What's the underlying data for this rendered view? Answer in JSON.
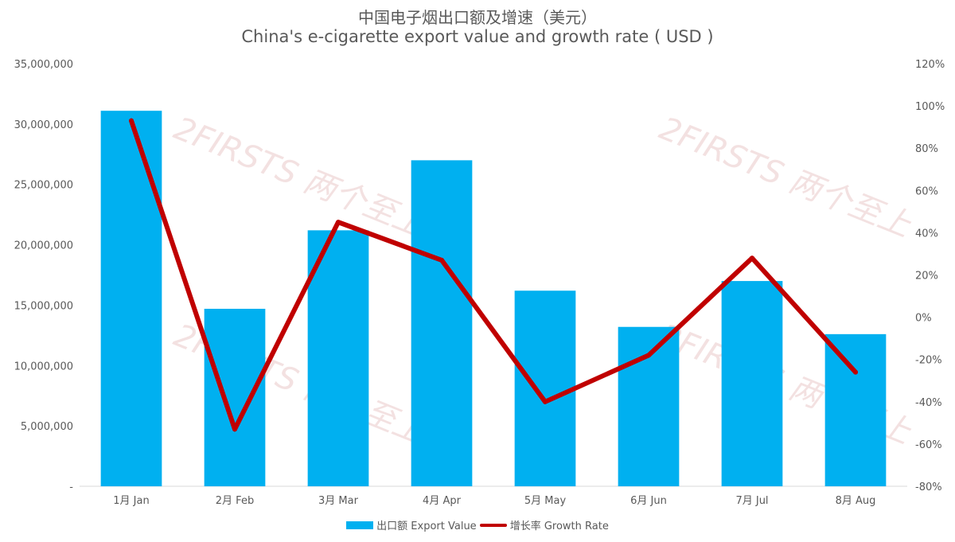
{
  "chart_data": {
    "type": "bar",
    "title": "中国电子烟出口额及增速（美元）",
    "subtitle": "China's e-cigarette export value and growth rate ( USD )",
    "categories": [
      "1月 Jan",
      "2月 Feb",
      "3月 Mar",
      "4月 Apr",
      "5月 May",
      "6月 Jun",
      "7月 Jul",
      "8月 Aug"
    ],
    "series": [
      {
        "name": "出口额 Export Value",
        "type": "bar",
        "axis": "left",
        "color": "#00B0F0",
        "values": [
          31100000,
          14700000,
          21200000,
          27000000,
          16200000,
          13200000,
          17000000,
          12600000
        ]
      },
      {
        "name": "增长率 Growth Rate",
        "type": "line",
        "axis": "right",
        "color": "#C00000",
        "values": [
          93,
          -53,
          45,
          27,
          -40,
          -18,
          28,
          -26
        ]
      }
    ],
    "y_left": {
      "ylim": [
        0,
        35000000
      ],
      "ticks": [
        "-",
        "5,000,000",
        "10,000,000",
        "15,000,000",
        "20,000,000",
        "25,000,000",
        "30,000,000",
        "35,000,000"
      ]
    },
    "y_right": {
      "ylim": [
        -80,
        120
      ],
      "unit": "%",
      "ticks": [
        "-80%",
        "-60%",
        "-40%",
        "-20%",
        "0%",
        "20%",
        "40%",
        "60%",
        "80%",
        "100%",
        "120%"
      ]
    },
    "legend_position": "bottom",
    "grid": false,
    "watermark": "2FIRSTS 两个至上"
  }
}
